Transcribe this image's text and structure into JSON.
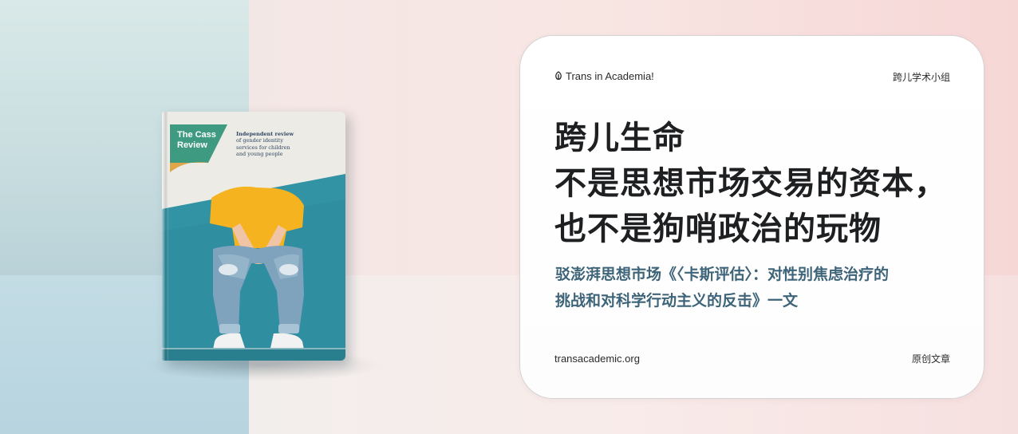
{
  "book": {
    "title_line1": "The Cass",
    "title_line2": "Review",
    "subtitle_lines": [
      "Independent review",
      "of gender identity",
      "services for children",
      "and young people"
    ]
  },
  "card": {
    "brand": "Trans in Academia!",
    "brand_icon": "leaf-icon",
    "group": "跨儿学术小组",
    "headline_lines": [
      "跨儿生命",
      "不是思想市场交易的资本，",
      "也不是狗哨政治的玩物"
    ],
    "subline_lines": [
      "驳澎湃思想市场《〈卡斯评估〉：对性别焦虑治疗的",
      "挑战和对科学行动主义的反击》一文"
    ],
    "site": "transacademic.org",
    "original_label": "原创文章"
  },
  "colors": {
    "headline": "#1d1f21",
    "subline": "#3d6478",
    "book_teal": "#2f8ea0",
    "book_green": "#3e9a80",
    "shirt": "#f5b320"
  }
}
